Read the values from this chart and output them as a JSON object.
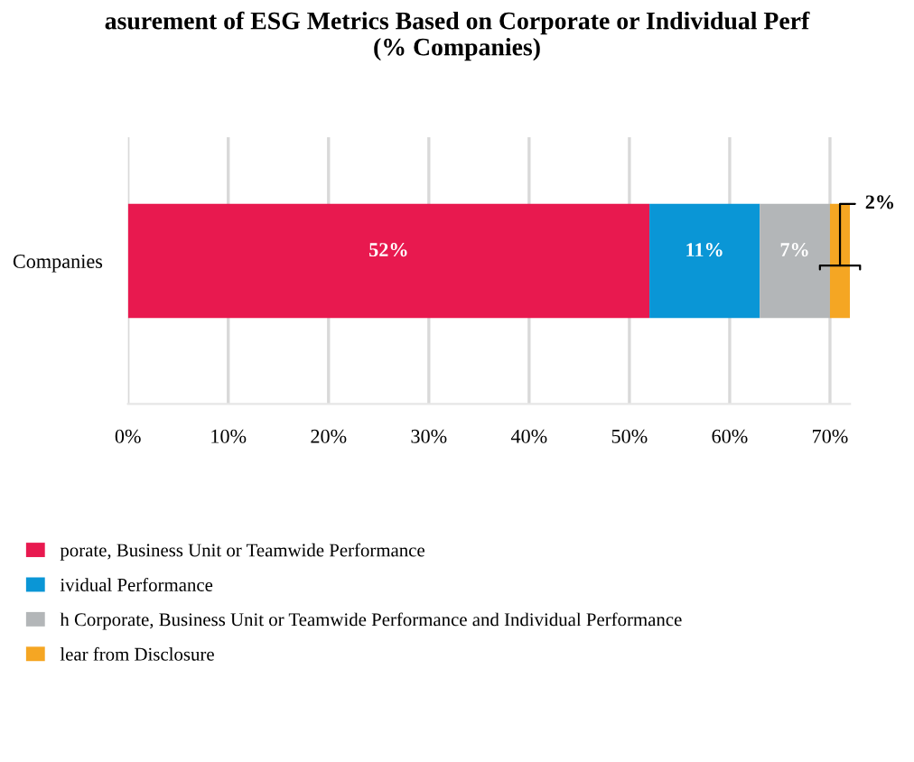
{
  "chart_data": {
    "type": "bar",
    "orientation": "horizontal",
    "stacked": true,
    "title": "asurement of ESG Metrics Based on Corporate or Individual Perf\n(% Companies)",
    "categories": [
      "Companies"
    ],
    "series": [
      {
        "name": "porate, Business Unit or Teamwide Performance",
        "color": "#e8194f",
        "values": [
          52
        ],
        "value_labels": [
          "52%"
        ]
      },
      {
        "name": "ividual Performance",
        "color": "#0a96d6",
        "values": [
          11
        ],
        "value_labels": [
          "11%"
        ]
      },
      {
        "name": "h Corporate, Business Unit or Teamwide Performance and Individual Performance",
        "color": "#b3b6b8",
        "values": [
          7
        ],
        "value_labels": [
          "7%"
        ]
      },
      {
        "name": "lear from Disclosure",
        "color": "#f5a623",
        "values": [
          2
        ],
        "value_labels": [
          "2%"
        ]
      }
    ],
    "xlim": [
      0,
      72
    ],
    "xticks": [
      {
        "value": 0,
        "label": "0%"
      },
      {
        "value": 10,
        "label": "10%"
      },
      {
        "value": 20,
        "label": "20%"
      },
      {
        "value": 30,
        "label": "30%"
      },
      {
        "value": 40,
        "label": "40%"
      },
      {
        "value": 50,
        "label": "50%"
      },
      {
        "value": 60,
        "label": "60%"
      },
      {
        "value": 70,
        "label": "70%"
      }
    ],
    "grid": "x",
    "legend": "bottom left"
  }
}
